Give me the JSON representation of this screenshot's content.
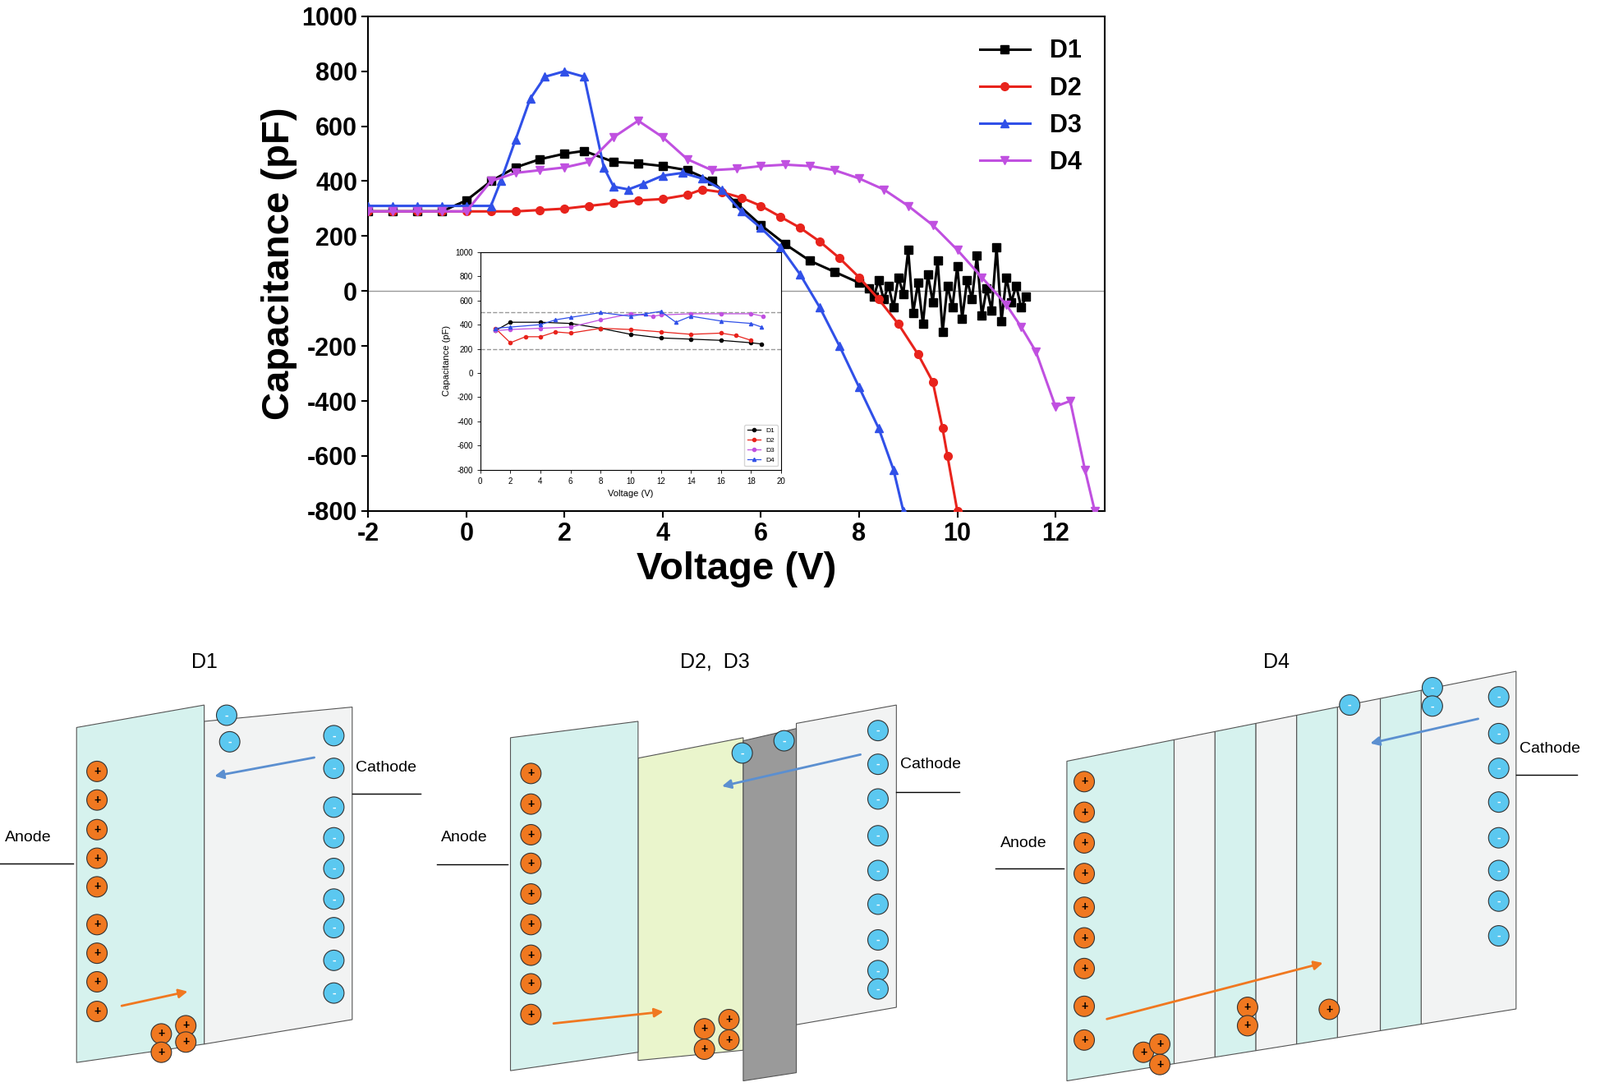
{
  "chart_data": [
    {
      "type": "line",
      "x_label": "Voltage (V)",
      "y_label": "Capacitance (pF)",
      "xlim": [
        -2,
        13
      ],
      "xticks": [
        -2,
        0,
        2,
        4,
        6,
        8,
        10,
        12
      ],
      "ylim": [
        -800,
        1000
      ],
      "yticks": [
        -800,
        -600,
        -400,
        -200,
        0,
        200,
        400,
        600,
        800,
        1000
      ],
      "reference_lines": [
        0
      ],
      "legend": "upper right",
      "series": [
        {
          "name": "D1",
          "color": "#000000",
          "marker": "square",
          "x": [
            -2,
            -1.5,
            -1,
            -0.5,
            0,
            0.5,
            1,
            1.5,
            2,
            2.4,
            3,
            3.5,
            4,
            4.5,
            5,
            5.5,
            6,
            6.5,
            7,
            7.5,
            8,
            8.2,
            8.3,
            8.4,
            8.5,
            8.6,
            8.7,
            8.8,
            8.9,
            9.0,
            9.1,
            9.2,
            9.3,
            9.4,
            9.5,
            9.6,
            9.7,
            9.8,
            9.9,
            10.0,
            10.1,
            10.2,
            10.3,
            10.4,
            10.5,
            10.6,
            10.7,
            10.8,
            10.9,
            11.0,
            11.1,
            11.2,
            11.3,
            11.4
          ],
          "values": [
            290,
            290,
            290,
            290,
            330,
            400,
            450,
            480,
            500,
            510,
            470,
            465,
            455,
            440,
            400,
            320,
            240,
            170,
            110,
            70,
            30,
            10,
            -20,
            40,
            -30,
            20,
            -60,
            50,
            -10,
            150,
            -80,
            30,
            -120,
            60,
            -40,
            110,
            -150,
            20,
            -60,
            90,
            -100,
            40,
            -30,
            130,
            -90,
            10,
            -70,
            160,
            -110,
            50,
            -40,
            20,
            -60,
            -20
          ]
        },
        {
          "name": "D2",
          "color": "#e8231c",
          "marker": "circle",
          "x": [
            -2,
            -1.5,
            -1,
            -0.5,
            0,
            0.5,
            1,
            1.5,
            2,
            2.5,
            3,
            3.5,
            4,
            4.5,
            4.8,
            5.2,
            5.6,
            6,
            6.4,
            6.8,
            7.2,
            7.6,
            8,
            8.4,
            8.8,
            9.2,
            9.5,
            9.7,
            9.8,
            10.0
          ],
          "values": [
            290,
            290,
            290,
            290,
            290,
            290,
            290,
            295,
            300,
            310,
            320,
            330,
            335,
            350,
            370,
            360,
            340,
            310,
            270,
            230,
            180,
            120,
            50,
            -30,
            -120,
            -230,
            -330,
            -500,
            -600,
            -800
          ]
        },
        {
          "name": "D3",
          "color": "#3050e8",
          "marker": "triangle_up",
          "x": [
            -2,
            -1.5,
            -1,
            -0.5,
            0,
            0.5,
            0.7,
            1.0,
            1.3,
            1.6,
            2.0,
            2.4,
            2.8,
            3.0,
            3.3,
            3.6,
            4.0,
            4.4,
            4.8,
            5.2,
            5.6,
            6.0,
            6.4,
            6.8,
            7.2,
            7.6,
            8.0,
            8.4,
            8.7,
            8.9
          ],
          "values": [
            310,
            310,
            310,
            310,
            310,
            310,
            400,
            550,
            700,
            780,
            800,
            780,
            450,
            380,
            370,
            390,
            420,
            430,
            410,
            370,
            290,
            230,
            160,
            60,
            -60,
            -200,
            -350,
            -500,
            -650,
            -800
          ]
        },
        {
          "name": "D4",
          "color": "#c050e0",
          "marker": "triangle_down",
          "x": [
            -2,
            -1.5,
            -1,
            -0.5,
            0,
            0.5,
            1,
            1.5,
            2,
            2.5,
            3,
            3.5,
            4,
            4.5,
            5,
            5.5,
            6,
            6.5,
            7,
            7.5,
            8,
            8.5,
            9,
            9.5,
            10,
            10.5,
            11,
            11.3,
            11.6,
            12,
            12.3,
            12.6,
            12.8
          ],
          "values": [
            290,
            290,
            290,
            290,
            290,
            400,
            430,
            440,
            450,
            470,
            560,
            620,
            560,
            480,
            440,
            445,
            455,
            460,
            455,
            440,
            410,
            370,
            310,
            240,
            150,
            50,
            -50,
            -130,
            -220,
            -420,
            -400,
            -650,
            -800
          ]
        }
      ]
    },
    {
      "type": "line",
      "x_label": "Voltage (V)",
      "y_label": "Capacitance (pF)",
      "xlim": [
        0,
        20
      ],
      "xticks": [
        0,
        2,
        4,
        6,
        8,
        10,
        12,
        14,
        16,
        18,
        20
      ],
      "ylim": [
        -800,
        1000
      ],
      "yticks": [
        -800,
        -600,
        -400,
        -200,
        0,
        200,
        400,
        600,
        800,
        1000
      ],
      "reference_lines": [
        200,
        500
      ],
      "legend": "lower right",
      "series": [
        {
          "name": "D1",
          "color": "#000000",
          "marker": "circle",
          "x": [
            1,
            2,
            4,
            6,
            8,
            10,
            12,
            14,
            16,
            18,
            18.7
          ],
          "values": [
            350,
            420,
            420,
            410,
            370,
            320,
            290,
            280,
            270,
            250,
            240
          ]
        },
        {
          "name": "D2",
          "color": "#e8231c",
          "marker": "circle",
          "x": [
            1,
            2,
            3,
            4,
            5,
            6,
            8,
            10,
            12,
            14,
            16,
            17,
            18
          ],
          "values": [
            370,
            250,
            300,
            300,
            340,
            330,
            370,
            360,
            340,
            320,
            330,
            310,
            270
          ]
        },
        {
          "name": "D3",
          "color": "#c050e0",
          "marker": "circle",
          "x": [
            1,
            2,
            4,
            6,
            8,
            10,
            11.5,
            12,
            14,
            16,
            18,
            18.8
          ],
          "values": [
            350,
            360,
            370,
            380,
            440,
            490,
            470,
            480,
            490,
            490,
            490,
            470
          ]
        },
        {
          "name": "D4",
          "color": "#3050e8",
          "marker": "triangle_up",
          "x": [
            1,
            2,
            4,
            5,
            6,
            8,
            10,
            11,
            12,
            13,
            14,
            16,
            18,
            18.7
          ],
          "values": [
            370,
            380,
            400,
            440,
            460,
            500,
            470,
            490,
            510,
            420,
            470,
            430,
            410,
            380
          ]
        }
      ]
    }
  ],
  "diagram": {
    "positive_charge": "+",
    "negative_charge": "-",
    "panels": [
      {
        "title": "D1",
        "anode": "Anode",
        "cathode": "Cathode"
      },
      {
        "title": "D2,  D3",
        "anode": "Anode",
        "cathode": "Cathode"
      },
      {
        "title": "D4",
        "anode": "Anode",
        "cathode": "Cathode"
      }
    ]
  }
}
